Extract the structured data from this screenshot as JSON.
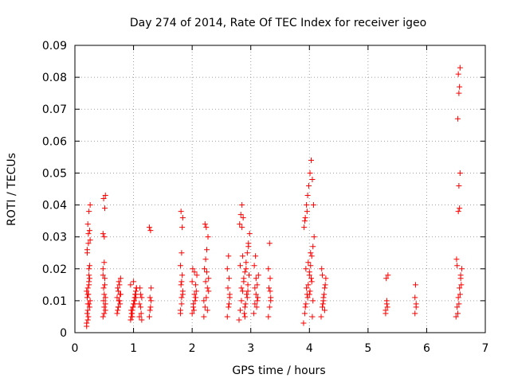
{
  "chart_data": {
    "type": "scatter",
    "title": "Day 274 of 2014, Rate Of TEC Index for receiver igeo",
    "xlabel": "GPS time / hours",
    "ylabel": "ROTI / TECUs",
    "xlim": [
      0,
      7
    ],
    "ylim": [
      0,
      0.09
    ],
    "xticks": [
      0,
      1,
      2,
      3,
      4,
      5,
      6,
      7
    ],
    "xtick_labels": [
      "0",
      "1",
      "2",
      "3",
      "4",
      "5",
      "6",
      "7"
    ],
    "yticks": [
      0,
      0.01,
      0.02,
      0.03,
      0.04,
      0.05,
      0.06,
      0.07,
      0.08,
      0.09
    ],
    "ytick_labels": [
      "0",
      "0.01",
      "0.02",
      "0.03",
      "0.04",
      "0.05",
      "0.06",
      "0.07",
      "0.08",
      "0.09"
    ],
    "grid": true,
    "marker": "+",
    "color": "#ff0000",
    "series": [
      {
        "name": "ROTI",
        "x": [
          0.2,
          0.21,
          0.22,
          0.23,
          0.24,
          0.25,
          0.21,
          0.22,
          0.23,
          0.24,
          0.25,
          0.26,
          0.2,
          0.22,
          0.24,
          0.21,
          0.23,
          0.25,
          0.22,
          0.24,
          0.26,
          0.21,
          0.23,
          0.25,
          0.22,
          0.24,
          0.2,
          0.22,
          0.24,
          0.26,
          0.48,
          0.5,
          0.52,
          0.49,
          0.51,
          0.48,
          0.5,
          0.52,
          0.49,
          0.51,
          0.5,
          0.48,
          0.52,
          0.49,
          0.51,
          0.5,
          0.48,
          0.52,
          0.5,
          0.72,
          0.74,
          0.76,
          0.78,
          0.73,
          0.75,
          0.77,
          0.72,
          0.74,
          0.76,
          0.78,
          0.73,
          0.75,
          0.77,
          0.74,
          0.95,
          0.97,
          0.99,
          1.01,
          1.03,
          1.05,
          0.96,
          0.98,
          1.0,
          1.02,
          1.04,
          0.95,
          0.97,
          0.99,
          1.01,
          1.03,
          1.05,
          1.0,
          0.98,
          1.02,
          1.04,
          0.96,
          1.1,
          1.12,
          1.14,
          1.11,
          1.13,
          1.1,
          1.12,
          1.14,
          1.27,
          1.29,
          1.28,
          1.3,
          1.27,
          1.29,
          1.28,
          1.3,
          1.8,
          1.82,
          1.84,
          1.81,
          1.83,
          1.8,
          1.82,
          1.84,
          1.81,
          1.83,
          1.82,
          1.8,
          1.84,
          1.82,
          2.0,
          2.02,
          2.04,
          2.06,
          2.08,
          2.01,
          2.03,
          2.05,
          2.07,
          2.0,
          2.04,
          2.06,
          2.02,
          2.2,
          2.22,
          2.24,
          2.26,
          2.28,
          2.21,
          2.23,
          2.25,
          2.27,
          2.22,
          2.24,
          2.26,
          2.2,
          2.28,
          2.23,
          2.25,
          2.6,
          2.62,
          2.64,
          2.61,
          2.63,
          2.6,
          2.62,
          2.64,
          2.63,
          2.8,
          2.82,
          2.84,
          2.86,
          2.88,
          2.9,
          2.92,
          2.94,
          2.96,
          2.98,
          2.81,
          2.83,
          2.85,
          2.87,
          2.89,
          2.91,
          2.93,
          2.95,
          2.97,
          2.82,
          2.86,
          2.9,
          2.94,
          2.84,
          2.88,
          2.92,
          2.96,
          2.85,
          2.9,
          2.95,
          3.05,
          3.07,
          3.09,
          3.11,
          3.13,
          3.06,
          3.08,
          3.1,
          3.12,
          3.07,
          3.09,
          3.11,
          3.3,
          3.32,
          3.34,
          3.31,
          3.33,
          3.3,
          3.32,
          3.34,
          3.33,
          3.9,
          3.92,
          3.94,
          3.96,
          3.98,
          4.0,
          4.02,
          4.04,
          4.06,
          4.08,
          3.91,
          3.93,
          3.95,
          3.97,
          3.99,
          4.01,
          4.03,
          4.05,
          4.07,
          3.92,
          3.96,
          4.0,
          4.04,
          3.94,
          3.98,
          4.02,
          4.06,
          3.95,
          4.0,
          4.05,
          3.93,
          3.97,
          4.01,
          4.03,
          4.2,
          4.22,
          4.24,
          4.26,
          4.28,
          4.21,
          4.23,
          4.25,
          4.27,
          4.22,
          4.26,
          4.24,
          5.3,
          5.32,
          5.34,
          5.31,
          5.33,
          5.32,
          5.3,
          5.8,
          5.82,
          5.81,
          5.8,
          5.82,
          6.5,
          6.52,
          6.54,
          6.56,
          6.58,
          6.6,
          6.51,
          6.53,
          6.55,
          6.57,
          6.59,
          6.54,
          6.56,
          6.55,
          6.57,
          6.53,
          6.55,
          6.56,
          6.54,
          6.57,
          6.52,
          6.58
        ],
        "y": [
          0.003,
          0.006,
          0.009,
          0.012,
          0.015,
          0.008,
          0.011,
          0.014,
          0.005,
          0.018,
          0.021,
          0.01,
          0.013,
          0.007,
          0.016,
          0.025,
          0.028,
          0.032,
          0.034,
          0.038,
          0.04,
          0.026,
          0.031,
          0.017,
          0.004,
          0.009,
          0.002,
          0.012,
          0.02,
          0.029,
          0.005,
          0.008,
          0.011,
          0.014,
          0.017,
          0.02,
          0.022,
          0.007,
          0.01,
          0.015,
          0.03,
          0.031,
          0.043,
          0.042,
          0.039,
          0.012,
          0.018,
          0.009,
          0.006,
          0.006,
          0.008,
          0.01,
          0.012,
          0.014,
          0.016,
          0.009,
          0.011,
          0.013,
          0.015,
          0.017,
          0.007,
          0.01,
          0.012,
          0.008,
          0.004,
          0.006,
          0.008,
          0.01,
          0.012,
          0.014,
          0.005,
          0.007,
          0.009,
          0.011,
          0.013,
          0.015,
          0.006,
          0.008,
          0.01,
          0.012,
          0.014,
          0.016,
          0.005,
          0.009,
          0.011,
          0.007,
          0.005,
          0.008,
          0.011,
          0.014,
          0.006,
          0.009,
          0.012,
          0.004,
          0.005,
          0.008,
          0.011,
          0.014,
          0.033,
          0.032,
          0.007,
          0.01,
          0.006,
          0.009,
          0.012,
          0.015,
          0.018,
          0.021,
          0.025,
          0.036,
          0.038,
          0.033,
          0.011,
          0.007,
          0.013,
          0.016,
          0.006,
          0.009,
          0.012,
          0.015,
          0.018,
          0.02,
          0.007,
          0.01,
          0.013,
          0.016,
          0.019,
          0.011,
          0.008,
          0.005,
          0.008,
          0.011,
          0.014,
          0.017,
          0.02,
          0.023,
          0.026,
          0.03,
          0.034,
          0.033,
          0.007,
          0.01,
          0.013,
          0.016,
          0.019,
          0.005,
          0.008,
          0.011,
          0.014,
          0.017,
          0.02,
          0.024,
          0.012,
          0.009,
          0.004,
          0.007,
          0.01,
          0.013,
          0.016,
          0.019,
          0.022,
          0.025,
          0.028,
          0.031,
          0.034,
          0.037,
          0.04,
          0.036,
          0.006,
          0.009,
          0.012,
          0.015,
          0.018,
          0.021,
          0.024,
          0.008,
          0.011,
          0.014,
          0.017,
          0.02,
          0.027,
          0.033,
          0.005,
          0.013,
          0.006,
          0.009,
          0.012,
          0.015,
          0.018,
          0.021,
          0.024,
          0.008,
          0.011,
          0.014,
          0.017,
          0.01,
          0.005,
          0.008,
          0.011,
          0.014,
          0.017,
          0.02,
          0.028,
          0.01,
          0.013,
          0.003,
          0.006,
          0.009,
          0.012,
          0.015,
          0.018,
          0.021,
          0.024,
          0.027,
          0.03,
          0.033,
          0.036,
          0.04,
          0.043,
          0.046,
          0.05,
          0.054,
          0.048,
          0.04,
          0.035,
          0.038,
          0.012,
          0.016,
          0.02,
          0.022,
          0.025,
          0.01,
          0.014,
          0.019,
          0.005,
          0.008,
          0.011,
          0.013,
          0.017,
          0.005,
          0.008,
          0.011,
          0.014,
          0.017,
          0.02,
          0.009,
          0.012,
          0.015,
          0.018,
          0.007,
          0.01,
          0.006,
          0.009,
          0.018,
          0.017,
          0.008,
          0.01,
          0.007,
          0.006,
          0.009,
          0.015,
          0.011,
          0.008,
          0.005,
          0.008,
          0.011,
          0.014,
          0.017,
          0.02,
          0.023,
          0.006,
          0.009,
          0.012,
          0.015,
          0.038,
          0.039,
          0.046,
          0.05,
          0.067,
          0.075,
          0.077,
          0.081,
          0.083,
          0.021,
          0.018
        ]
      }
    ]
  }
}
